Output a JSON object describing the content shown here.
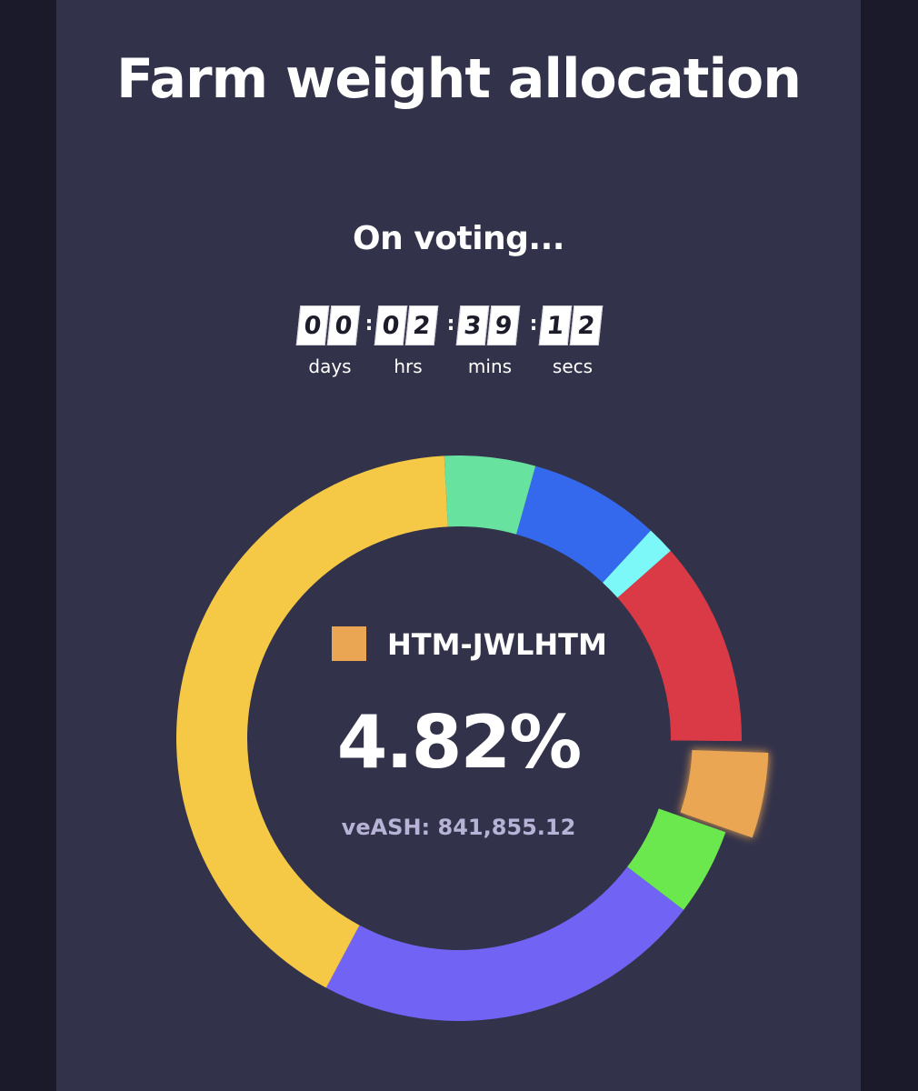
{
  "header": {
    "title": "Farm weight allocation"
  },
  "status": {
    "text": "On voting..."
  },
  "countdown": {
    "units": [
      {
        "digits": [
          "0",
          "0"
        ],
        "label": "days"
      },
      {
        "digits": [
          "0",
          "2"
        ],
        "label": "hrs"
      },
      {
        "digits": [
          "3",
          "9"
        ],
        "label": "mins"
      },
      {
        "digits": [
          "1",
          "2"
        ],
        "label": "secs"
      }
    ],
    "separator": ":"
  },
  "selected": {
    "name": "HTM-JWLHTM",
    "percent": "4.82%",
    "veash": "veASH: 841,855.12",
    "color": "#eba653"
  },
  "chart_data": {
    "type": "pie",
    "donut": true,
    "start_angle_deg": -3,
    "highlighted_index": 5,
    "slices": [
      {
        "value": 5.2,
        "color": "#67e29f"
      },
      {
        "value": 7.5,
        "color": "#3469ee"
      },
      {
        "value": 1.6,
        "color": "#7cf8f9"
      },
      {
        "value": 11.7,
        "color": "#d93a45"
      },
      {
        "value": 0.4,
        "color": "#32324a"
      },
      {
        "value": 4.82,
        "color": "#eba653"
      },
      {
        "value": 5.0,
        "color": "#6ae84d"
      },
      {
        "value": 22.4,
        "color": "#7164f5"
      },
      {
        "value": 41.38,
        "color": "#f5c946"
      }
    ]
  }
}
